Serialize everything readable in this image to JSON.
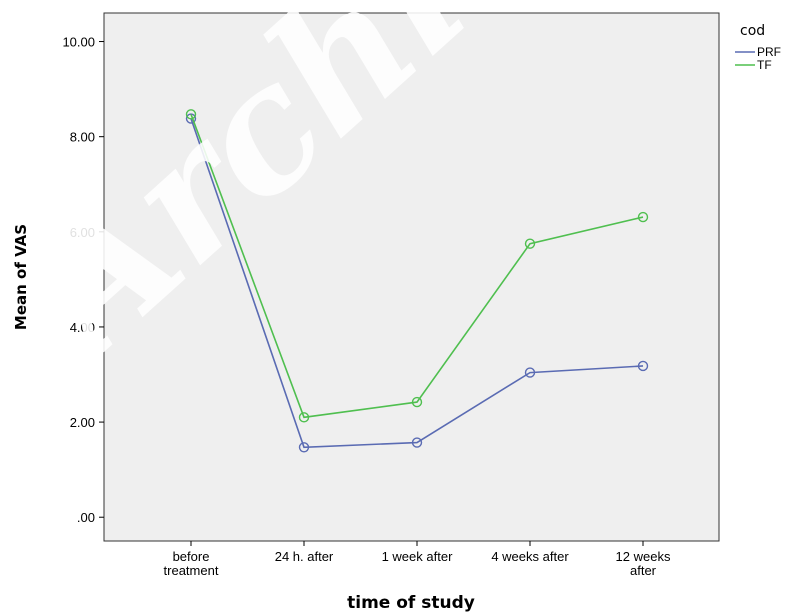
{
  "chart_data": {
    "type": "line",
    "title": "",
    "xlabel": "time of study",
    "ylabel": "Mean of VAS",
    "categories": [
      "before\ntreatment",
      "24 h. after",
      "1 week after",
      "4 weeks after",
      "12 weeks\nafter"
    ],
    "ylim": [
      -0.5,
      10.6
    ],
    "yticks": [
      0,
      2,
      4,
      6,
      8,
      10
    ],
    "ytick_labels": [
      ".00",
      "2.00",
      "4.00",
      "6.00",
      "8.00",
      "10.00"
    ],
    "grid": false,
    "legend": {
      "title": "cod",
      "position": "right"
    },
    "series": [
      {
        "name": "PRF",
        "color": "#5a6bb3",
        "values": [
          8.38,
          1.47,
          1.57,
          3.04,
          3.18
        ]
      },
      {
        "name": "TF",
        "color": "#4fbf4f",
        "values": [
          8.47,
          2.1,
          2.42,
          5.75,
          6.31
        ]
      }
    ],
    "plot_background": "#efefef"
  },
  "watermark_text": "Archive"
}
